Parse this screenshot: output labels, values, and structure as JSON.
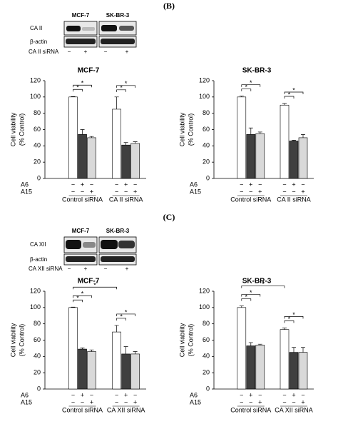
{
  "panels": [
    {
      "label": "(B)",
      "blot": {
        "columns": [
          "MCF-7",
          "SK-BR-3"
        ],
        "rows": [
          "CA II",
          "β-actin"
        ],
        "sirna_label": "CA II siRNA",
        "signs": [
          "−",
          "+",
          "−",
          "+"
        ]
      }
    },
    {
      "label": "(C)",
      "blot": {
        "columns": [
          "MCF-7",
          "SK-BR-3"
        ],
        "rows": [
          "CA XII",
          "β-actin"
        ],
        "sirna_label": "CA XII siRNA",
        "signs": [
          "−",
          "+",
          "−",
          "+"
        ]
      }
    }
  ],
  "chart_data": [
    {
      "type": "bar",
      "title": "MCF-7",
      "ylabel": [
        "Cell viability",
        "(% Control)"
      ],
      "categories": [
        "Control siRNA",
        "CA II siRNA"
      ],
      "series": [
        {
          "color": "#ffffff",
          "values": [
            100,
            85
          ],
          "errors": [
            0.5,
            15
          ]
        },
        {
          "color": "#404040",
          "values": [
            54,
            41
          ],
          "errors": [
            6,
            3
          ]
        },
        {
          "color": "#d9d9d9",
          "values": [
            50,
            43
          ],
          "errors": [
            1.5,
            2
          ]
        }
      ],
      "treatments": [
        {
          "label": "A6",
          "signs": [
            "−",
            "+",
            "−",
            "−",
            "+",
            "−"
          ]
        },
        {
          "label": "A15",
          "signs": [
            "−",
            "−",
            "+",
            "−",
            "−",
            "+"
          ]
        }
      ],
      "significance": [
        {
          "from": [
            0,
            0
          ],
          "to": [
            0,
            1
          ],
          "label": "*"
        },
        {
          "from": [
            0,
            0
          ],
          "to": [
            0,
            2
          ],
          "label": "*"
        },
        {
          "from": [
            1,
            0
          ],
          "to": [
            1,
            1
          ],
          "label": "*"
        },
        {
          "from": [
            1,
            0
          ],
          "to": [
            1,
            2
          ],
          "label": "*"
        }
      ],
      "ylim": [
        0,
        120
      ],
      "yticks": [
        0,
        20,
        40,
        60,
        80,
        100,
        120
      ]
    },
    {
      "type": "bar",
      "title": "SK-BR-3",
      "ylabel": [
        "Cell viability",
        "(% Control)"
      ],
      "categories": [
        "Control siRNA",
        "CA II siRNA"
      ],
      "series": [
        {
          "color": "#ffffff",
          "values": [
            100,
            90
          ],
          "errors": [
            1,
            2
          ]
        },
        {
          "color": "#404040",
          "values": [
            54,
            46
          ],
          "errors": [
            8,
            1
          ]
        },
        {
          "color": "#d9d9d9",
          "values": [
            55,
            50
          ],
          "errors": [
            2,
            4
          ]
        }
      ],
      "treatments": [
        {
          "label": "A6",
          "signs": [
            "−",
            "+",
            "−",
            "−",
            "+",
            "−"
          ]
        },
        {
          "label": "A15",
          "signs": [
            "−",
            "−",
            "+",
            "−",
            "−",
            "+"
          ]
        }
      ],
      "significance": [
        {
          "from": [
            0,
            0
          ],
          "to": [
            0,
            1
          ],
          "label": "*"
        },
        {
          "from": [
            0,
            0
          ],
          "to": [
            0,
            2
          ],
          "label": "*"
        },
        {
          "from": [
            1,
            0
          ],
          "to": [
            1,
            1
          ],
          "label": "*"
        },
        {
          "from": [
            1,
            0
          ],
          "to": [
            1,
            2
          ],
          "label": "*"
        }
      ],
      "ylim": [
        0,
        120
      ],
      "yticks": [
        0,
        20,
        40,
        60,
        80,
        100,
        120
      ]
    },
    {
      "type": "bar",
      "title": "MCF-7",
      "ylabel": [
        "Cell viability",
        "(% Control)"
      ],
      "categories": [
        "Control siRNA",
        "CA XII siRNA"
      ],
      "series": [
        {
          "color": "#ffffff",
          "values": [
            100,
            70
          ],
          "errors": [
            0.5,
            8
          ]
        },
        {
          "color": "#404040",
          "values": [
            49,
            43
          ],
          "errors": [
            1.5,
            9
          ]
        },
        {
          "color": "#d9d9d9",
          "values": [
            46,
            43
          ],
          "errors": [
            2,
            3
          ]
        }
      ],
      "treatments": [
        {
          "label": "A6",
          "signs": [
            "−",
            "+",
            "−",
            "−",
            "+",
            "−"
          ]
        },
        {
          "label": "A15",
          "signs": [
            "−",
            "−",
            "+",
            "−",
            "−",
            "+"
          ]
        }
      ],
      "significance": [
        {
          "from": [
            0,
            0
          ],
          "to": [
            0,
            1
          ],
          "label": "*"
        },
        {
          "from": [
            0,
            0
          ],
          "to": [
            0,
            2
          ],
          "label": "*"
        },
        {
          "from": [
            0,
            0
          ],
          "to": [
            1,
            0
          ],
          "label": "*"
        },
        {
          "from": [
            1,
            0
          ],
          "to": [
            1,
            1
          ],
          "label": "*"
        },
        {
          "from": [
            1,
            0
          ],
          "to": [
            1,
            2
          ],
          "label": "*"
        }
      ],
      "ylim": [
        0,
        120
      ],
      "yticks": [
        0,
        20,
        40,
        60,
        80,
        100,
        120
      ]
    },
    {
      "type": "bar",
      "title": "SK-BR-3",
      "ylabel": [
        "Cell viability",
        "(% Control)"
      ],
      "categories": [
        "Control siRNA",
        "CA XII siRNA"
      ],
      "series": [
        {
          "color": "#ffffff",
          "values": [
            100,
            73
          ],
          "errors": [
            2,
            2
          ]
        },
        {
          "color": "#404040",
          "values": [
            53,
            45
          ],
          "errors": [
            4,
            6
          ]
        },
        {
          "color": "#d9d9d9",
          "values": [
            54,
            45
          ],
          "errors": [
            1,
            6
          ]
        }
      ],
      "treatments": [
        {
          "label": "A6",
          "signs": [
            "−",
            "+",
            "−",
            "−",
            "+",
            "−"
          ]
        },
        {
          "label": "A15",
          "signs": [
            "−",
            "−",
            "+",
            "−",
            "−",
            "+"
          ]
        }
      ],
      "significance": [
        {
          "from": [
            0,
            0
          ],
          "to": [
            0,
            1
          ],
          "label": "*"
        },
        {
          "from": [
            0,
            0
          ],
          "to": [
            0,
            2
          ],
          "label": "*"
        },
        {
          "from": [
            0,
            0
          ],
          "to": [
            1,
            0
          ],
          "label": "*"
        },
        {
          "from": [
            1,
            0
          ],
          "to": [
            1,
            1
          ],
          "label": "*"
        },
        {
          "from": [
            1,
            0
          ],
          "to": [
            1,
            2
          ],
          "label": "*"
        }
      ],
      "ylim": [
        0,
        120
      ],
      "yticks": [
        0,
        20,
        40,
        60,
        80,
        100,
        120
      ]
    }
  ]
}
